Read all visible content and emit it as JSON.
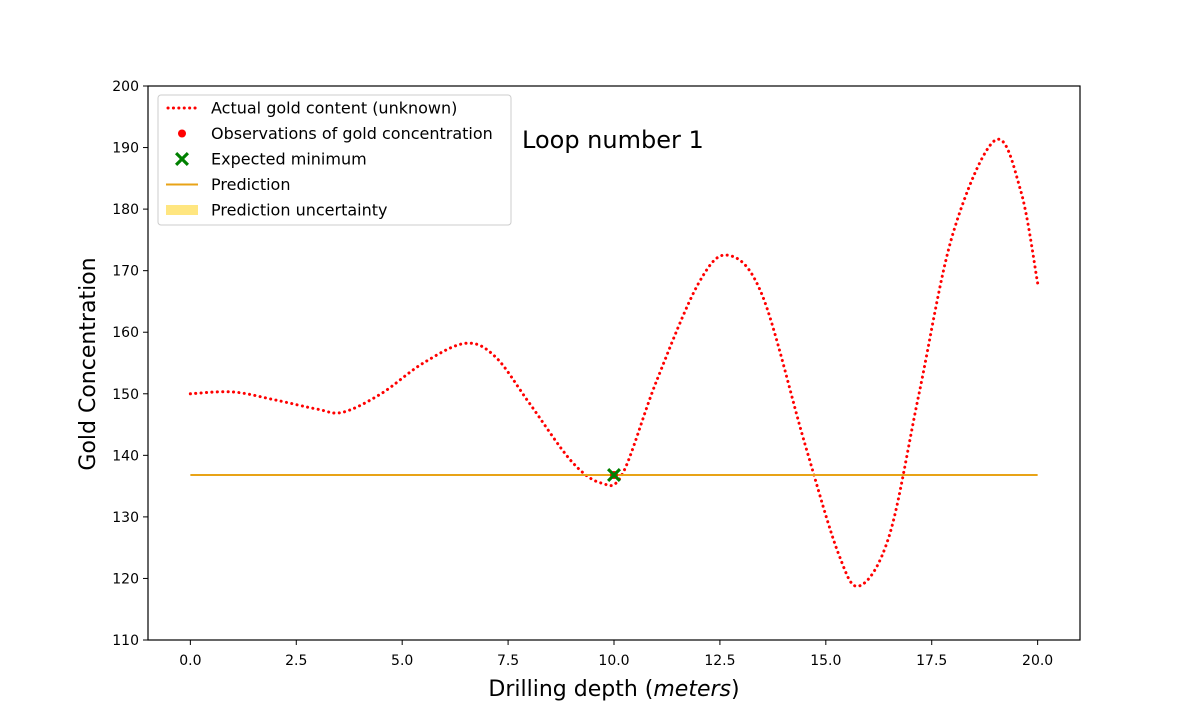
{
  "chart_data": {
    "type": "line",
    "title": "",
    "xlabel_prefix": "Drilling depth (",
    "xlabel_unit": "meters",
    "xlabel_suffix": ")",
    "ylabel": "Gold Concentration",
    "xlim": [
      -1.0,
      21.0
    ],
    "ylim": [
      110,
      200
    ],
    "grid": false,
    "legend_position": "top-left",
    "annotation": "Loop number 1",
    "x_ticks": [
      "0.0",
      "2.5",
      "5.0",
      "7.5",
      "10.0",
      "12.5",
      "15.0",
      "17.5",
      "20.0"
    ],
    "y_ticks": [
      "110",
      "120",
      "130",
      "140",
      "150",
      "160",
      "170",
      "180",
      "190",
      "200"
    ],
    "series": [
      {
        "name": "Actual gold content (unknown)",
        "style": "dotted",
        "color": "#ff0000",
        "x": [
          0.0,
          1.0,
          2.0,
          3.0,
          3.6,
          4.5,
          5.5,
          6.5,
          7.2,
          8.0,
          9.0,
          9.7,
          10.2,
          11.0,
          12.0,
          12.7,
          13.5,
          14.5,
          15.3,
          15.8,
          16.5,
          17.2,
          18.0,
          19.0,
          19.6,
          20.0
        ],
        "y": [
          150.0,
          150.3,
          149.0,
          147.5,
          147.0,
          150.0,
          155.0,
          158.2,
          156.0,
          148.5,
          139.0,
          135.5,
          137.0,
          152.0,
          168.0,
          172.5,
          166.0,
          142.0,
          124.0,
          118.8,
          127.0,
          150.0,
          176.0,
          191.2,
          183.0,
          168.0
        ]
      },
      {
        "name": "Observations of gold concentration",
        "style": "marker-dot",
        "color": "#ff0000",
        "x": [
          10.0
        ],
        "y": [
          136.8
        ]
      },
      {
        "name": "Expected minimum",
        "style": "marker-x",
        "color": "#008000",
        "x": [
          10.0
        ],
        "y": [
          136.8
        ]
      },
      {
        "name": "Prediction",
        "style": "solid",
        "color": "#e8a317",
        "x": [
          0.0,
          20.0
        ],
        "y": [
          136.8,
          136.8
        ]
      },
      {
        "name": "Prediction uncertainty",
        "style": "band",
        "color": "#ffe680",
        "x": [],
        "y": []
      }
    ]
  }
}
